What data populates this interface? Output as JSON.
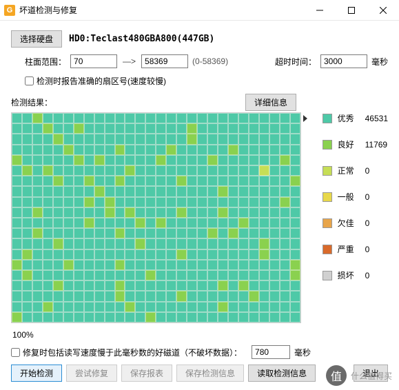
{
  "window": {
    "title": "坏道检测与修复"
  },
  "disk": {
    "selectLabel": "选择硬盘",
    "name": "HD0:Teclast480GBA800(447GB)"
  },
  "params": {
    "cylLabel": "柱面范围：",
    "cylFrom": "70",
    "cylTo": "58369",
    "cylRange": "(0-58369)",
    "timeoutLabel": "超时时间：",
    "timeout": "3000",
    "timeoutUnit": "毫秒",
    "sectorChk": "检测时报告准确的扇区号(速度较慢)"
  },
  "result": {
    "label": "检测结果：",
    "detailBtn": "详细信息"
  },
  "legend": [
    {
      "label": "优秀",
      "color": "#4ec9a7",
      "count": "46531"
    },
    {
      "label": "良好",
      "color": "#8ad14f",
      "count": "11769"
    },
    {
      "label": "正常",
      "color": "#c6de56",
      "count": "0"
    },
    {
      "label": "一般",
      "color": "#e8d84a",
      "count": "0"
    },
    {
      "label": "欠佳",
      "color": "#e8a54a",
      "count": "0"
    },
    {
      "label": "严重",
      "color": "#d96a2b",
      "count": "0"
    },
    {
      "label": "损坏",
      "color": "#d0d0d0",
      "count": "0"
    }
  ],
  "progress": "100%",
  "repair": {
    "chk": "修复时包括读写速度慢于此毫秒数的好磁道（不破坏数据）：",
    "ms": "780",
    "unit": "毫秒"
  },
  "buttons": {
    "start": "开始检测",
    "tryFix": "尝试修复",
    "saveReport": "保存报表",
    "saveInfo": "保存检测信息",
    "readInfo": "读取检测信息",
    "exit": "退出"
  },
  "watermark": "什么值得买",
  "grid": {
    "cols": 28,
    "rows": 20,
    "pattern": "eegeeeeeeeeeeeeeeeeeeeeeeeeeeeegeegeeeeeeeeeegeeeeeeeeeeeeeegeeeeeeeeeeeegeeeeeeeeeeeeeeegeeeegeeeegeeeeegeeeeeegeeeeegegeeeeegeeeegeeeeeegeegegeeeeeeegeeeeeeeeeeeeleeeeeeegeegeegeeeeegeeeeeeeeeegeeeeeeeegeeeeeeeeeeegeeeeeeeeeeeeeegegeeeeeeeeeeeeeeeegeeegeeeeeegegeeeegeeegeeeeeeeeeeeeeegeeeegegeeeeeeegeeeeeeegeeeeeeegeeeeeeeegegeeeeeeeeeegeeeeeeegeeeeeeeeeeegeeeegeeeeeeeeeeeeeegeeeeeeegeeegeeeegeeeegeeeeeeeeeeeeeeeegegeeeeeeeeeeegeeeeeeeeeeeeegeeeegeeeeegeeeeeeeeegegeeeeeeeeeeeeeeegeeeeegeeeeeegeeeeeeegeeeeeeegeeeeeeeegeeeeeeegeeeeeeeeeeeegeeeeeeeee"
  }
}
